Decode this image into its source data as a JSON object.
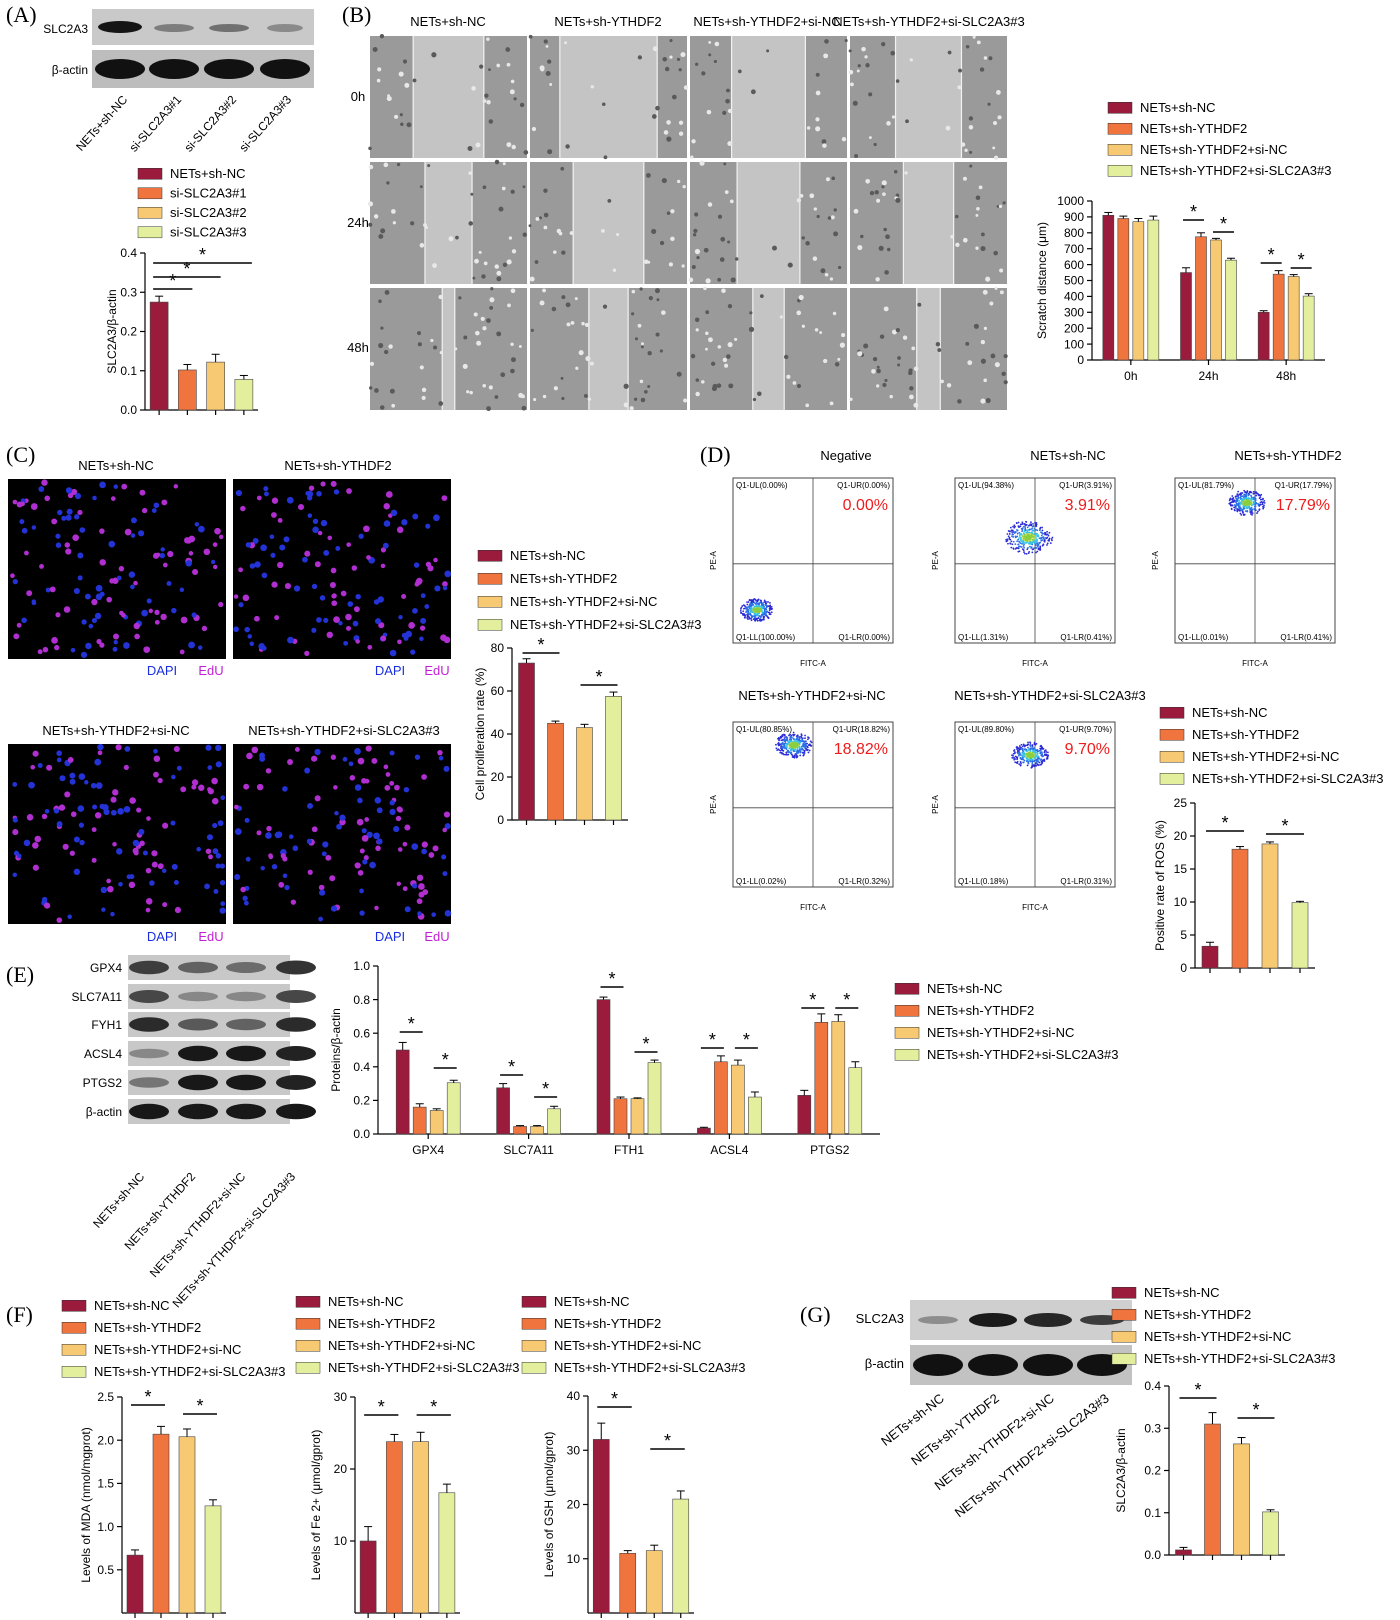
{
  "colors": {
    "c1": "#9b1b3d",
    "c2": "#f0743e",
    "c3": "#f7c973",
    "c4": "#e4ef9e"
  },
  "panelA": {
    "label": "(A)",
    "blots": [
      "SLC2A3",
      "β-actin"
    ],
    "lanes": [
      "NETs+sh-NC",
      "si-SLC2A3#1",
      "si-SLC2A3#2",
      "si-SLC2A3#3"
    ],
    "legend": [
      "NETs+sh-NC",
      "si-SLC2A3#1",
      "si-SLC2A3#2",
      "si-SLC2A3#3"
    ]
  },
  "panelB": {
    "label": "(B)",
    "columns": [
      "NETs+sh-NC",
      "NETs+sh-YTHDF2",
      "NETs+sh-YTHDF2+si-NC",
      "NETs+sh-YTHDF2+si-SLC2A3#3"
    ],
    "rows": [
      "0h",
      "24h",
      "48h"
    ],
    "legend": [
      "NETs+sh-NC",
      "NETs+sh-YTHDF2",
      "NETs+sh-YTHDF2+si-NC",
      "NETs+sh-YTHDF2+si-SLC2A3#3"
    ]
  },
  "panelC": {
    "label": "(C)",
    "titles": [
      "NETs+sh-NC",
      "NETs+sh-YTHDF2",
      "NETs+sh-YTHDF2+si-NC",
      "NETs+sh-YTHDF2+si-SLC2A3#3"
    ],
    "dapi": "DAPI",
    "edu": "EdU",
    "legend": [
      "NETs+sh-NC",
      "NETs+sh-YTHDF2",
      "NETs+sh-YTHDF2+si-NC",
      "NETs+sh-YTHDF2+si-SLC2A3#3"
    ]
  },
  "panelD": {
    "label": "(D)",
    "plots": [
      {
        "title": "Negative",
        "big": "0.00%",
        "ul": "Q1-UL(0.00%)",
        "ur": "Q1-UR(0.00%)",
        "ll": "Q1-LL(100.00%)",
        "lr": "Q1-LR(0.00%)"
      },
      {
        "title": "NETs+sh-NC",
        "big": "3.91%",
        "ul": "Q1-UL(94.38%)",
        "ur": "Q1-UR(3.91%)",
        "ll": "Q1-LL(1.31%)",
        "lr": "Q1-LR(0.41%)"
      },
      {
        "title": "NETs+sh-YTHDF2",
        "big": "17.79%",
        "ul": "Q1-UL(81.79%)",
        "ur": "Q1-UR(17.79%)",
        "ll": "Q1-LL(0.01%)",
        "lr": "Q1-LR(0.41%)"
      },
      {
        "title": "NETs+sh-YTHDF2+si-NC",
        "big": "18.82%",
        "ul": "Q1-UL(80.85%)",
        "ur": "Q1-UR(18.82%)",
        "ll": "Q1-LL(0.02%)",
        "lr": "Q1-LR(0.32%)"
      },
      {
        "title": "NETs+sh-YTHDF2+si-SLC2A3#3",
        "big": "9.70%",
        "ul": "Q1-UL(89.80%)",
        "ur": "Q1-UR(9.70%)",
        "ll": "Q1-LL(0.18%)",
        "lr": "Q1-LR(0.31%)"
      }
    ],
    "xaxis": "FITC-A",
    "yaxis": "PE-A",
    "legend": [
      "NETs+sh-NC",
      "NETs+sh-YTHDF2",
      "NETs+sh-YTHDF2+si-NC",
      "NETs+sh-YTHDF2+si-SLC2A3#3"
    ]
  },
  "panelE": {
    "label": "(E)",
    "blots": [
      "GPX4",
      "SLC7A11",
      "FYH1",
      "ACSL4",
      "PTGS2",
      "β-actin"
    ],
    "lanes": [
      "NETs+sh-NC",
      "NETs+sh-YTHDF2",
      "NETs+sh-YTHDF2+si-NC",
      "NETs+sh-YTHDF2+si-SLC2A3#3"
    ],
    "legend": [
      "NETs+sh-NC",
      "NETs+sh-YTHDF2",
      "NETs+sh-YTHDF2+si-NC",
      "NETs+sh-YTHDF2+si-SLC2A3#3"
    ]
  },
  "panelF": {
    "label": "(F)",
    "legend": [
      "NETs+sh-NC",
      "NETs+sh-YTHDF2",
      "NETs+sh-YTHDF2+si-NC",
      "NETs+sh-YTHDF2+si-SLC2A3#3"
    ]
  },
  "panelG": {
    "label": "(G)",
    "blots": [
      "SLC2A3",
      "β-actin"
    ],
    "lanes": [
      "NETs+sh-NC",
      "NETs+sh-YTHDF2",
      "NETs+sh-YTHDF2+si-NC",
      "NETs+sh-YTHDF2+si-SLC2A3#3"
    ],
    "legend": [
      "NETs+sh-NC",
      "NETs+sh-YTHDF2",
      "NETs+sh-YTHDF2+si-NC",
      "NETs+sh-YTHDF2+si-SLC2A3#3"
    ]
  },
  "chart_data": [
    {
      "id": "A",
      "type": "bar",
      "categories": [
        "NETs+sh-NC",
        "si-SLC2A3#1",
        "si-SLC2A3#2",
        "si-SLC2A3#3"
      ],
      "values": [
        0.275,
        0.102,
        0.122,
        0.078
      ],
      "errors": [
        0.015,
        0.014,
        0.02,
        0.01
      ],
      "ylabel": "SLC2A3/β-actin",
      "ylim": [
        0,
        0.4
      ],
      "yticks": [
        0,
        0.1,
        0.2,
        0.3,
        0.4
      ],
      "yticklabels": [
        "0.0",
        "0.1",
        "0.2",
        "0.3",
        "0.4"
      ]
    },
    {
      "id": "B",
      "type": "bar",
      "categories": [
        "0h",
        "24h",
        "48h"
      ],
      "series": [
        {
          "name": "NETs+sh-NC",
          "values": [
            910,
            550,
            300
          ],
          "errors": [
            18,
            30,
            10
          ]
        },
        {
          "name": "NETs+sh-YTHDF2",
          "values": [
            890,
            775,
            540
          ],
          "errors": [
            15,
            25,
            22
          ]
        },
        {
          "name": "NETs+sh-YTHDF2+si-NC",
          "values": [
            870,
            755,
            525
          ],
          "errors": [
            20,
            10,
            12
          ]
        },
        {
          "name": "NETs+sh-YTHDF2+si-SLC2A3#3",
          "values": [
            880,
            628,
            402
          ],
          "errors": [
            25,
            12,
            15
          ]
        }
      ],
      "ylabel": "Scratch distance (μm)",
      "ylim": [
        0,
        1000
      ],
      "yticks": [
        0,
        100,
        200,
        300,
        400,
        500,
        600,
        700,
        800,
        900,
        1000
      ]
    },
    {
      "id": "C",
      "type": "bar",
      "categories": [
        "NETs+sh-NC",
        "NETs+sh-YTHDF2",
        "NETs+sh-YTHDF2+si-NC",
        "NETs+sh-YTHDF2+si-SLC2A3#3"
      ],
      "values": [
        73,
        45,
        43,
        57.5
      ],
      "errors": [
        2,
        1,
        1.5,
        2
      ],
      "ylabel": "Cell proliferation rate (%)",
      "ylim": [
        0,
        80
      ],
      "yticks": [
        0,
        20,
        40,
        60,
        80
      ]
    },
    {
      "id": "D",
      "type": "bar",
      "categories": [
        "NETs+sh-NC",
        "NETs+sh-YTHDF2",
        "NETs+sh-YTHDF2+si-NC",
        "NETs+sh-YTHDF2+si-SLC2A3#3"
      ],
      "values": [
        3.3,
        18,
        18.8,
        9.9
      ],
      "errors": [
        0.6,
        0.4,
        0.3,
        0.2
      ],
      "ylabel": "Positive rate of ROS (%)",
      "ylim": [
        0,
        25
      ],
      "yticks": [
        0,
        5,
        10,
        15,
        20,
        25
      ]
    },
    {
      "id": "E",
      "type": "bar",
      "categories": [
        "GPX4",
        "SLC7A11",
        "FTH1",
        "ACSL4",
        "PTGS2"
      ],
      "series": [
        {
          "name": "NETs+sh-NC",
          "values": [
            0.5,
            0.275,
            0.8,
            0.035,
            0.23
          ],
          "errors": [
            0.045,
            0.025,
            0.015,
            0.005,
            0.03
          ]
        },
        {
          "name": "NETs+sh-YTHDF2",
          "values": [
            0.16,
            0.045,
            0.21,
            0.43,
            0.665
          ],
          "errors": [
            0.02,
            0.005,
            0.01,
            0.035,
            0.05
          ]
        },
        {
          "name": "NETs+sh-YTHDF2+si-NC",
          "values": [
            0.14,
            0.045,
            0.21,
            0.41,
            0.67
          ],
          "errors": [
            0.01,
            0.005,
            0.005,
            0.03,
            0.04
          ]
        },
        {
          "name": "NETs+sh-YTHDF2+si-SLC2A3#3",
          "values": [
            0.305,
            0.15,
            0.425,
            0.22,
            0.395
          ],
          "errors": [
            0.015,
            0.015,
            0.015,
            0.03,
            0.035
          ]
        }
      ],
      "ylabel": "Proteins/β-actin",
      "ylim": [
        0,
        1.0
      ],
      "yticks": [
        0,
        0.2,
        0.4,
        0.6,
        0.8,
        1.0
      ],
      "yticklabels": [
        "0.0",
        "0.2",
        "0.4",
        "0.6",
        "0.8",
        "1.0"
      ]
    },
    {
      "id": "F1",
      "type": "bar",
      "categories": [
        "NETs+sh-NC",
        "NETs+sh-YTHDF2",
        "NETs+sh-YTHDF2+si-NC",
        "NETs+sh-YTHDF2+si-SLC2A3#3"
      ],
      "values": [
        0.67,
        2.07,
        2.04,
        1.24
      ],
      "errors": [
        0.06,
        0.09,
        0.09,
        0.07
      ],
      "ylabel": "Levels of MDA (nmol/mgprot)",
      "ylim": [
        0,
        2.5
      ],
      "yticks": [
        0.5,
        1.0,
        1.5,
        2.0,
        2.5
      ],
      "yticklabels": [
        "0.5",
        "1.0",
        "1.5",
        "2.0",
        "2.5"
      ]
    },
    {
      "id": "F2",
      "type": "bar",
      "categories": [
        "NETs+sh-NC",
        "NETs+sh-YTHDF2",
        "NETs+sh-YTHDF2+si-NC",
        "NETs+sh-YTHDF2+si-SLC2A3#3"
      ],
      "values": [
        10,
        23.8,
        23.8,
        16.7
      ],
      "errors": [
        2,
        1,
        1.3,
        1.2
      ],
      "ylabel": "Levels of Fe 2+ (μmol/gprot)",
      "ylim": [
        0,
        30
      ],
      "yticks": [
        10,
        20,
        30
      ]
    },
    {
      "id": "F3",
      "type": "bar",
      "categories": [
        "NETs+sh-NC",
        "NETs+sh-YTHDF2",
        "NETs+sh-YTHDF2+si-NC",
        "NETs+sh-YTHDF2+si-SLC2A3#3"
      ],
      "values": [
        32,
        11,
        11.5,
        21
      ],
      "errors": [
        3,
        0.5,
        1,
        1.5
      ],
      "ylabel": "Levels of GSH (μmol/gprot)",
      "ylim": [
        0,
        40
      ],
      "yticks": [
        10,
        20,
        30,
        40
      ]
    },
    {
      "id": "G",
      "type": "bar",
      "categories": [
        "NETs+sh-NC",
        "NETs+sh-YTHDF2",
        "NETs+sh-YTHDF2+si-NC",
        "NETs+sh-YTHDF2+si-SLC2A3#3"
      ],
      "values": [
        0.012,
        0.31,
        0.263,
        0.102
      ],
      "errors": [
        0.006,
        0.027,
        0.015,
        0.005
      ],
      "ylabel": "SLC2A3/β-actin",
      "ylim": [
        0,
        0.4
      ],
      "yticks": [
        0,
        0.1,
        0.2,
        0.3,
        0.4
      ],
      "yticklabels": [
        "0.0",
        "0.1",
        "0.2",
        "0.3",
        "0.4"
      ]
    }
  ]
}
